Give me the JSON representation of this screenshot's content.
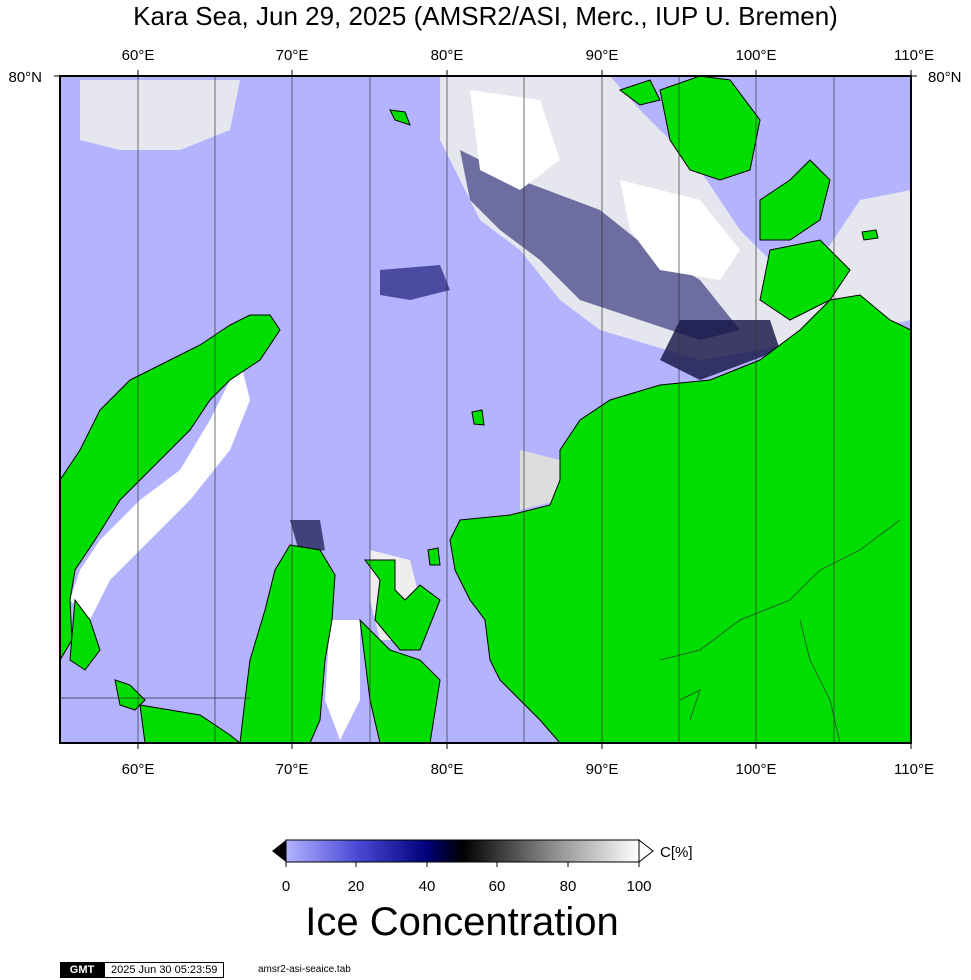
{
  "title": "Kara Sea, Jun 29, 2025 (AMSR2/ASI, Merc., IUP U. Bremen)",
  "map": {
    "lon_range": [
      55,
      110
    ],
    "lat_top_label": "80°N",
    "top_ticks": [
      "60°E",
      "70°E",
      "80°E",
      "90°E",
      "100°E",
      "110°E"
    ],
    "bottom_ticks": [
      "60°E",
      "70°E",
      "80°E",
      "90°E",
      "100°E",
      "110°E"
    ],
    "colors": {
      "water": "#b3b3ff",
      "land": "#00dd00",
      "ice": "#ffffff",
      "coast": "#000000"
    }
  },
  "colorbar": {
    "ticks": [
      "0",
      "20",
      "40",
      "60",
      "80",
      "100"
    ],
    "unit": "C[%]",
    "colors": [
      "#b3b3ff",
      "#4a4ad6",
      "#00007a",
      "#000000",
      "#7a7a7a",
      "#ffffff"
    ]
  },
  "label": "Ice Concentration",
  "footer": {
    "logo": "GMT",
    "timestamp": "2025 Jun 30 05:23:59",
    "file": "amsr2-asi-seaice.tab"
  }
}
